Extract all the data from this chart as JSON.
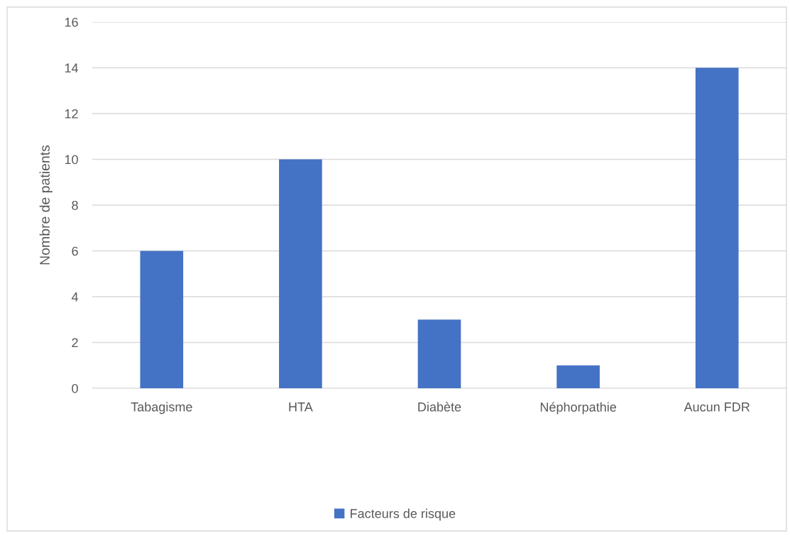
{
  "chart_data": {
    "type": "bar",
    "ylabel": "Nombre de patients",
    "categories": [
      "Tabagisme",
      "HTA",
      "Diabète",
      "Néphorpathie",
      "Aucun FDR"
    ],
    "series": [
      {
        "name": "Facteurs de risque",
        "color": "#4472c4",
        "values": [
          6,
          10,
          3,
          1,
          14
        ]
      }
    ],
    "ylim": [
      0,
      16
    ],
    "yticks": [
      0,
      2,
      4,
      6,
      8,
      10,
      12,
      14,
      16
    ],
    "grid": "y",
    "legend": "bottom"
  }
}
